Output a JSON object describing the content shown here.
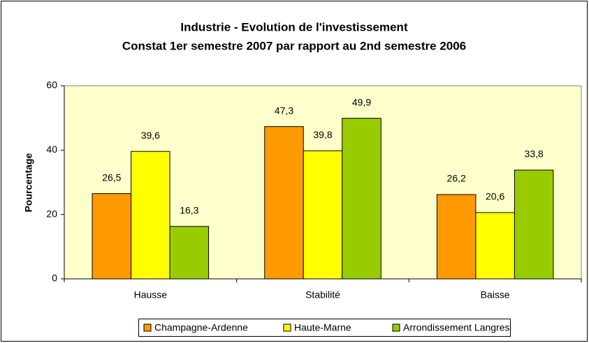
{
  "chart_data": {
    "type": "bar",
    "title": "Industrie - Evolution de l'investissement",
    "subtitle": "Constat 1er semestre 2007 par rapport au 2nd semestre 2006",
    "y_label": "Pourcentage",
    "categories": [
      "Hausse",
      "Stabilité",
      "Baisse"
    ],
    "series": [
      {
        "name": "Champagne-Ardenne",
        "color": "#ff9900",
        "values": [
          26.5,
          47.3,
          26.2
        ],
        "value_labels": [
          "26,5",
          "47,3",
          "26,2"
        ]
      },
      {
        "name": "Haute-Marne",
        "color": "#ffff00",
        "values": [
          39.6,
          39.8,
          20.6
        ],
        "value_labels": [
          "39,6",
          "39,8",
          "20,6"
        ]
      },
      {
        "name": "Arrondissement Langres",
        "color": "#99cc00",
        "values": [
          16.3,
          49.9,
          33.8
        ],
        "value_labels": [
          "16,3",
          "49,9",
          "33,8"
        ]
      }
    ],
    "ylim": [
      0,
      60
    ],
    "yticks": [
      0,
      20,
      40,
      60
    ],
    "grid": false,
    "plot_background": "#ffffcc",
    "legend": "bottom"
  }
}
